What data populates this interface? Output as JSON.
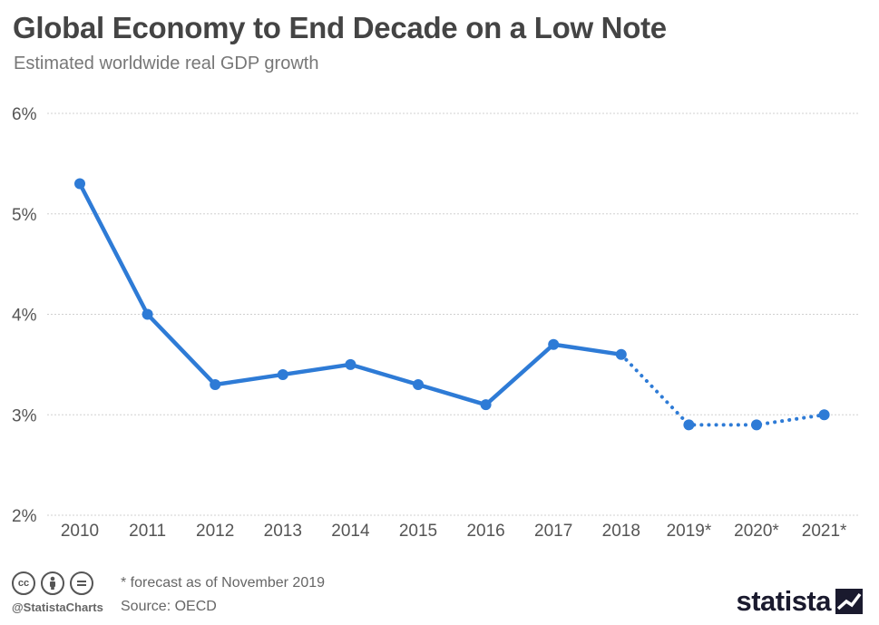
{
  "header": {
    "title": "Global Economy to End Decade on a Low Note",
    "subtitle": "Estimated worldwide real GDP growth"
  },
  "footer": {
    "note": "* forecast as of November 2019",
    "source": "Source: OECD",
    "handle": "@StatistaCharts",
    "brand": "statista",
    "license_icons": [
      "cc-icon",
      "by-icon",
      "nd-icon"
    ]
  },
  "colors": {
    "line": "#2e7bd6",
    "grid": "#d0d0d0",
    "axis_text": "#555555"
  },
  "chart_data": {
    "type": "line",
    "title": "Global Economy to End Decade on a Low Note",
    "subtitle": "Estimated worldwide real GDP growth",
    "categories": [
      "2010",
      "2011",
      "2012",
      "2013",
      "2014",
      "2015",
      "2016",
      "2017",
      "2018",
      "2019*",
      "2020*",
      "2021*"
    ],
    "series": [
      {
        "values": [
          5.3,
          4.0,
          3.3,
          3.4,
          3.5,
          3.3,
          3.1,
          3.7,
          3.6,
          2.9,
          2.9,
          3.0
        ],
        "forecast_from_index": 8
      }
    ],
    "ylim": [
      2,
      6
    ],
    "yticks": [
      2,
      3,
      4,
      5,
      6
    ],
    "ytick_labels": [
      "2%",
      "3%",
      "4%",
      "5%",
      "6%"
    ],
    "xlabel": "",
    "ylabel": "",
    "grid": true,
    "legend": "none"
  }
}
